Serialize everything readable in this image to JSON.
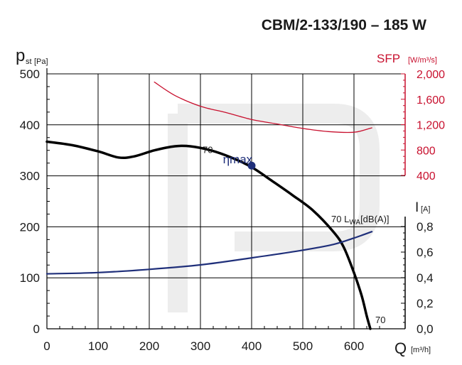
{
  "chart_data": {
    "type": "line",
    "title": "CBM/2-133/190 – 185 W",
    "x_axis": {
      "label": "Q",
      "unit": "[m³/h]",
      "range": [
        0,
        700
      ],
      "ticks": [
        "0",
        "100",
        "200",
        "300",
        "400",
        "500",
        "600"
      ]
    },
    "y_axis_left": {
      "label": "p",
      "label_sub": "st",
      "unit": "[Pa]",
      "range": [
        0,
        500
      ],
      "ticks": [
        "0",
        "100",
        "200",
        "300",
        "400",
        "500"
      ]
    },
    "y_axis_right_sfp": {
      "label": "SFP",
      "unit": "[W/m³/s]",
      "range": [
        400,
        2000
      ],
      "ticks": [
        "400",
        "800",
        "1,200",
        "1,600",
        "2,000"
      ]
    },
    "y_axis_right_current": {
      "label": "I",
      "unit": "[A]",
      "range": [
        0,
        0.8
      ],
      "ticks": [
        "0,0",
        "0,2",
        "0,4",
        "0,6",
        "0,8"
      ]
    },
    "series": [
      {
        "color": "#000000",
        "axis": "pressure",
        "points": [
          [
            0,
            367
          ],
          [
            50,
            360
          ],
          [
            100,
            348
          ],
          [
            140,
            336
          ],
          [
            170,
            338
          ],
          [
            210,
            350
          ],
          [
            250,
            358
          ],
          [
            280,
            358
          ],
          [
            320,
            350
          ],
          [
            360,
            336
          ],
          [
            400,
            317
          ],
          [
            440,
            290
          ],
          [
            480,
            262
          ],
          [
            520,
            232
          ],
          [
            560,
            190
          ],
          [
            580,
            160
          ],
          [
            600,
            110
          ],
          [
            615,
            65
          ],
          [
            625,
            25
          ],
          [
            632,
            0
          ]
        ]
      },
      {
        "color": "#1f2f7a",
        "axis": "current",
        "points": [
          [
            0,
            0.43
          ],
          [
            100,
            0.44
          ],
          [
            200,
            0.465
          ],
          [
            300,
            0.5
          ],
          [
            400,
            0.555
          ],
          [
            500,
            0.615
          ],
          [
            560,
            0.66
          ],
          [
            600,
            0.71
          ],
          [
            635,
            0.76
          ]
        ]
      },
      {
        "color": "#c8102e",
        "axis": "sfp",
        "points": [
          [
            210,
            1870
          ],
          [
            250,
            1660
          ],
          [
            300,
            1490
          ],
          [
            350,
            1390
          ],
          [
            400,
            1280
          ],
          [
            450,
            1210
          ],
          [
            500,
            1140
          ],
          [
            550,
            1090
          ],
          [
            600,
            1080
          ],
          [
            635,
            1150
          ]
        ]
      }
    ],
    "annotations": [
      {
        "text": "70",
        "x": 382,
        "y": 345
      },
      {
        "text": "ηmax",
        "x": 405,
        "y": 330
      },
      {
        "text": "70 L",
        "sub": "WA",
        "suffix": "[dB(A)]",
        "x": 555,
        "y": 212
      },
      {
        "text": "70",
        "x": 645,
        "y": 15
      }
    ],
    "eta_max_point": {
      "x": 400,
      "y": 320
    },
    "grid": true
  }
}
